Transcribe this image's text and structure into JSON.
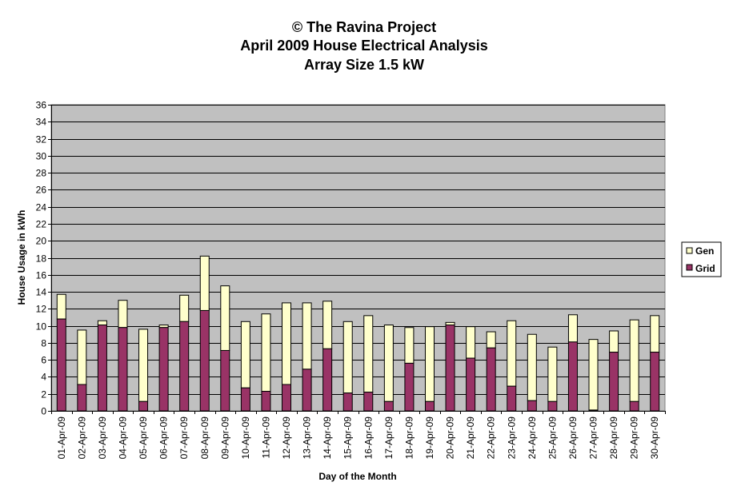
{
  "chart_data": {
    "type": "bar",
    "stacked": true,
    "title": [
      "© The Ravina Project",
      "April 2009 House Electrical Analysis",
      "Array Size 1.5 kW"
    ],
    "xlabel": "Day of the Month",
    "ylabel": "House Usage in kWh",
    "ylim": [
      0,
      36
    ],
    "ytick_step": 2,
    "grid": true,
    "legend_position": "right",
    "categories": [
      "01-Apr-09",
      "02-Apr-09",
      "03-Apr-09",
      "04-Apr-09",
      "05-Apr-09",
      "06-Apr-09",
      "07-Apr-09",
      "08-Apr-09",
      "09-Apr-09",
      "10-Apr-09",
      "11-Apr-09",
      "12-Apr-09",
      "13-Apr-09",
      "14-Apr-09",
      "15-Apr-09",
      "16-Apr-09",
      "17-Apr-09",
      "18-Apr-09",
      "19-Apr-09",
      "20-Apr-09",
      "21-Apr-09",
      "22-Apr-09",
      "23-Apr-09",
      "24-Apr-09",
      "25-Apr-09",
      "26-Apr-09",
      "27-Apr-09",
      "28-Apr-09",
      "29-Apr-09",
      "30-Apr-09"
    ],
    "series": [
      {
        "name": "Grid",
        "color": "#993366",
        "values": [
          10.8,
          3.1,
          10.1,
          9.8,
          1.1,
          9.8,
          10.5,
          11.8,
          7.1,
          2.7,
          2.3,
          3.1,
          4.9,
          7.3,
          2.1,
          2.2,
          1.1,
          5.6,
          1.1,
          10.1,
          6.2,
          7.4,
          2.9,
          1.2,
          1.1,
          8.1,
          0.1,
          6.9,
          1.1,
          6.9
        ]
      },
      {
        "name": "Gen",
        "color": "#FFFFCC",
        "values": [
          2.9,
          6.4,
          0.5,
          3.2,
          8.5,
          0.3,
          3.1,
          6.4,
          7.6,
          7.8,
          9.1,
          9.6,
          7.8,
          5.6,
          8.4,
          9.0,
          9.0,
          4.2,
          8.8,
          0.3,
          3.7,
          1.9,
          7.7,
          7.8,
          6.4,
          3.2,
          8.3,
          2.5,
          9.6,
          4.3
        ]
      }
    ],
    "colors": {
      "plot_background": "#C0C0C0",
      "gridline": "#000000",
      "bar_outline": "#000000"
    }
  }
}
